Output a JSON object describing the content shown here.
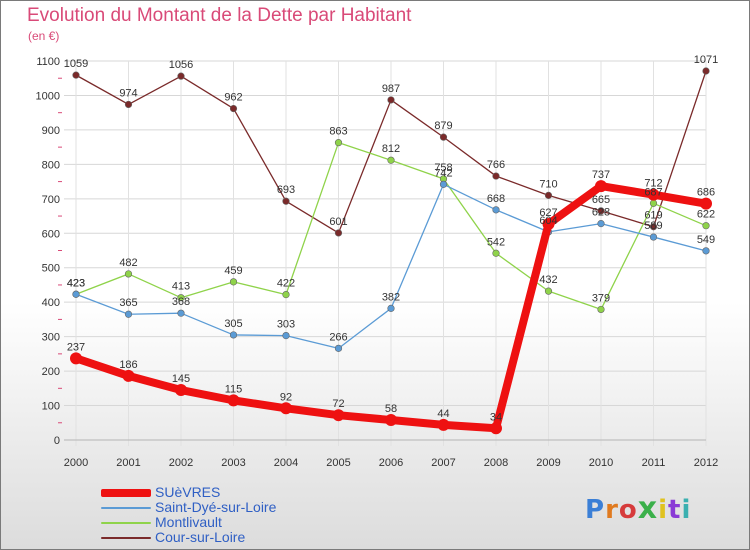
{
  "title": "Evolution du Montant de la Dette par Habitant",
  "unit": "(en €)",
  "brand": "Proxiti",
  "chart_data": {
    "type": "line",
    "title": "Evolution du Montant de la Dette par Habitant",
    "ylabel": "(en €)",
    "xlabel": "",
    "ylim": [
      0,
      1100
    ],
    "yticks": [
      0,
      100,
      200,
      300,
      400,
      500,
      600,
      700,
      800,
      900,
      1000,
      1100
    ],
    "grid": true,
    "legend_position": "bottom",
    "categories": [
      "2000",
      "2001",
      "2002",
      "2003",
      "2004",
      "2005",
      "2006",
      "2007",
      "2008",
      "2009",
      "2010",
      "2011",
      "2012"
    ],
    "series": [
      {
        "name": "SUèVRES",
        "color": "#ee1111",
        "values": [
          237,
          186,
          145,
          115,
          92,
          72,
          58,
          44,
          34,
          627,
          737,
          712,
          686
        ]
      },
      {
        "name": "Saint-Dyé-sur-Loire",
        "color": "#5b9bd5",
        "values": [
          423,
          365,
          368,
          305,
          303,
          266,
          382,
          742,
          668,
          604,
          628,
          589,
          549
        ]
      },
      {
        "name": "Montlivault",
        "color": "#8fd34a",
        "values": [
          423,
          482,
          413,
          459,
          422,
          863,
          812,
          758,
          542,
          432,
          379,
          687,
          622
        ]
      },
      {
        "name": "Cour-sur-Loire",
        "color": "#7a2a2a",
        "values": [
          1059,
          974,
          1056,
          962,
          693,
          601,
          987,
          879,
          766,
          710,
          665,
          619,
          1071
        ]
      }
    ]
  }
}
